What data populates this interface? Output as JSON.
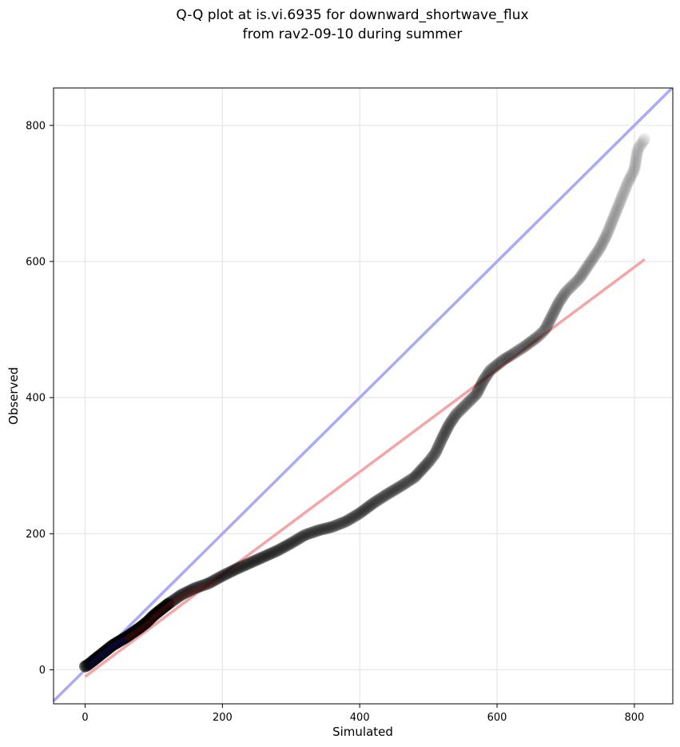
{
  "chart_data": {
    "type": "scatter",
    "title_lines": [
      "Q-Q plot at is.vi.6935 for downward_shortwave_flux",
      "from rav2-09-10 during summer"
    ],
    "xlabel": "Simulated",
    "ylabel": "Observed",
    "xlim": [
      -46,
      856
    ],
    "ylim": [
      -50,
      855
    ],
    "xticks": [
      0,
      200,
      400,
      600,
      800
    ],
    "yticks": [
      0,
      200,
      400,
      600,
      800
    ],
    "grid": true,
    "reference_line": {
      "label": "1:1",
      "color": "#aaaaf5",
      "from": [
        -46,
        -46
      ],
      "to": [
        856,
        856
      ]
    },
    "fit_line": {
      "color": "#f5a5a5",
      "from": [
        0,
        -10
      ],
      "to": [
        815,
        603
      ]
    },
    "point_color": "#000000",
    "low_range_overlay_colors": {
      "blue": "#1a1aa0",
      "red": "#8a1a1a"
    },
    "quantiles": {
      "x": [
        0,
        2,
        5,
        10,
        20,
        30,
        40,
        50,
        60,
        70,
        80,
        90,
        100,
        120,
        140,
        160,
        180,
        200,
        220,
        240,
        260,
        280,
        300,
        320,
        340,
        360,
        380,
        400,
        420,
        440,
        460,
        480,
        500,
        510,
        520,
        530,
        540,
        550,
        560,
        570,
        580,
        590,
        600,
        610,
        620,
        640,
        660,
        670,
        680,
        690,
        700,
        710,
        720,
        730,
        740,
        750,
        760,
        770,
        780,
        790,
        800,
        805,
        815
      ],
      "y": [
        5,
        6,
        8,
        12,
        20,
        28,
        36,
        42,
        48,
        55,
        62,
        70,
        80,
        96,
        110,
        120,
        127,
        138,
        148,
        157,
        166,
        175,
        186,
        198,
        205,
        210,
        218,
        230,
        245,
        258,
        270,
        283,
        305,
        318,
        340,
        360,
        375,
        385,
        395,
        405,
        425,
        440,
        448,
        456,
        462,
        475,
        490,
        500,
        520,
        540,
        555,
        565,
        575,
        590,
        605,
        620,
        640,
        665,
        690,
        715,
        735,
        765,
        780
      ]
    }
  }
}
